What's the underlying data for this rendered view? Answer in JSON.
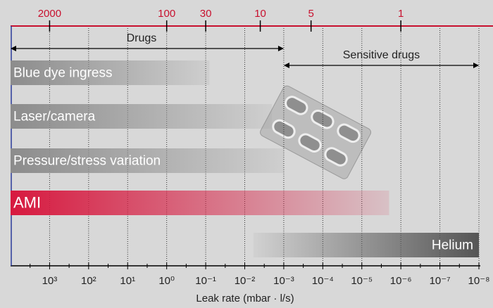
{
  "chart_data": {
    "type": "range-bar",
    "xlabel": "Leak rate (mbar · l/s)",
    "xscale": "log",
    "xlim": [
      10000,
      1e-08
    ],
    "xticks": [
      {
        "value": 1000,
        "label": "10³"
      },
      {
        "value": 100,
        "label": "10²"
      },
      {
        "value": 10,
        "label": "10¹"
      },
      {
        "value": 1,
        "label": "10⁰"
      },
      {
        "value": 0.1,
        "label": "10⁻¹"
      },
      {
        "value": 0.01,
        "label": "10⁻²"
      },
      {
        "value": 0.001,
        "label": "10⁻³"
      },
      {
        "value": 0.0001,
        "label": "10⁻⁴"
      },
      {
        "value": 1e-05,
        "label": "10⁻⁵"
      },
      {
        "value": 1e-06,
        "label": "10⁻⁶"
      },
      {
        "value": 1e-07,
        "label": "10⁻⁷"
      },
      {
        "value": 1e-08,
        "label": "10⁻⁸"
      }
    ],
    "grid": true,
    "top_axis": {
      "color": "#c8102e",
      "ticks": [
        {
          "hole": 2000,
          "leak_rate": 1000
        },
        {
          "hole": 100,
          "leak_rate": 1
        },
        {
          "hole": 30,
          "leak_rate": 0.1
        },
        {
          "hole": 10,
          "leak_rate": 0.004
        },
        {
          "hole": 5,
          "leak_rate": 0.0002
        },
        {
          "hole": 1,
          "leak_rate": 1e-06
        }
      ]
    },
    "ranges": [
      {
        "name": "Drugs",
        "start": 10000,
        "end": 0.001
      },
      {
        "name": "Sensitive drugs",
        "start": 0.001,
        "end": 1e-08
      }
    ],
    "series": [
      {
        "name": "Blue dye ingress",
        "start": 10000,
        "end": 0.08,
        "color": "#8c8c8c",
        "fade": "right"
      },
      {
        "name": "Laser/camera",
        "start": 10000,
        "end": 0.002,
        "color": "#8c8c8c",
        "fade": "right"
      },
      {
        "name": "Pressure/stress variation",
        "start": 10000,
        "end": 0.001,
        "color": "#8c8c8c",
        "fade": "right"
      },
      {
        "name": "AMI",
        "start": 10000,
        "end": 2e-06,
        "color": "#d7193f",
        "fade": "right"
      },
      {
        "name": "Helium",
        "start": 0.006,
        "end": 1e-08,
        "color": "#555555",
        "fade": "left"
      }
    ]
  }
}
